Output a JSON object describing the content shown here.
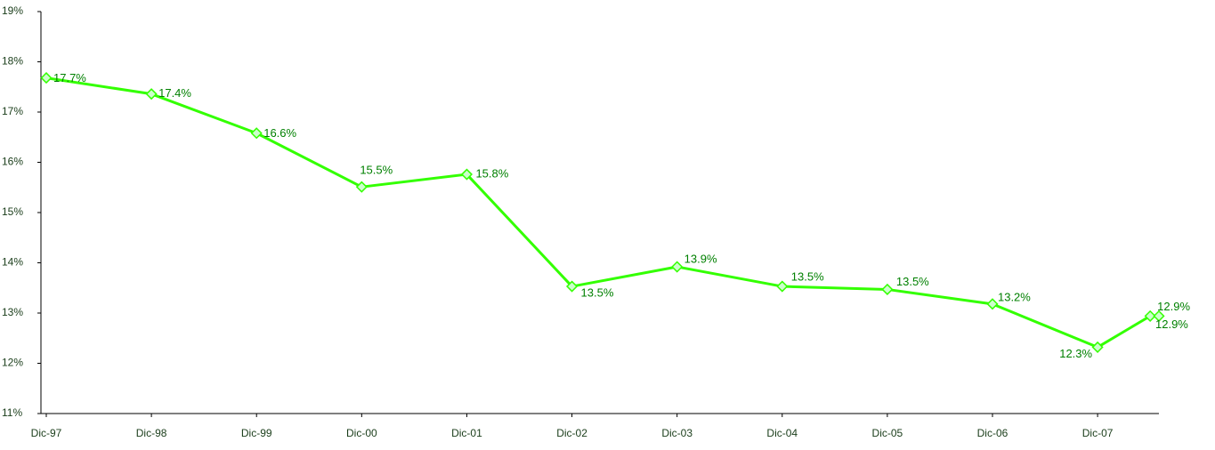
{
  "chart_data": {
    "type": "line",
    "x": [
      "1997-12",
      "1998-12",
      "1999-12",
      "2000-12",
      "2001-12",
      "2002-12",
      "2003-12",
      "2004-12",
      "2005-12",
      "2006-12",
      "2007-12",
      "2008-06",
      "2008-07"
    ],
    "series": [
      {
        "color": "#33ff00",
        "marker_fill": "#ccffcc",
        "label_color": "#008000",
        "values": [
          17.68,
          17.36,
          16.58,
          15.51,
          15.76,
          13.53,
          13.92,
          13.53,
          13.47,
          13.18,
          12.32,
          12.94,
          12.94
        ],
        "value_labels": [
          "17.7%",
          "17.4%",
          "16.6%",
          "15.5%",
          "15.8%",
          "13.5%",
          "13.9%",
          "13.5%",
          "13.5%",
          "13.2%",
          "12.3%",
          "12.9%",
          "12.9%"
        ]
      }
    ],
    "xlim": [
      "1997-12",
      "2008-07"
    ],
    "xticks": [
      {
        "value": "1997-12",
        "label": "Dic-97"
      },
      {
        "value": "1998-12",
        "label": "Dic-98"
      },
      {
        "value": "1999-12",
        "label": "Dic-99"
      },
      {
        "value": "2000-12",
        "label": "Dic-00"
      },
      {
        "value": "2001-12",
        "label": "Dic-01"
      },
      {
        "value": "2002-12",
        "label": "Dic-02"
      },
      {
        "value": "2003-12",
        "label": "Dic-03"
      },
      {
        "value": "2004-12",
        "label": "Dic-04"
      },
      {
        "value": "2005-12",
        "label": "Dic-05"
      },
      {
        "value": "2006-12",
        "label": "Dic-06"
      },
      {
        "value": "2007-12",
        "label": "Dic-07"
      }
    ],
    "ylim": [
      11,
      19
    ],
    "yticks": [
      {
        "value": 11,
        "label": "11%"
      },
      {
        "value": 12,
        "label": "12%"
      },
      {
        "value": 13,
        "label": "13%"
      },
      {
        "value": 14,
        "label": "14%"
      },
      {
        "value": 15,
        "label": "15%"
      },
      {
        "value": 16,
        "label": "16%"
      },
      {
        "value": 17,
        "label": "17%"
      },
      {
        "value": 18,
        "label": "18%"
      },
      {
        "value": 19,
        "label": "19%"
      }
    ],
    "grid": false
  }
}
